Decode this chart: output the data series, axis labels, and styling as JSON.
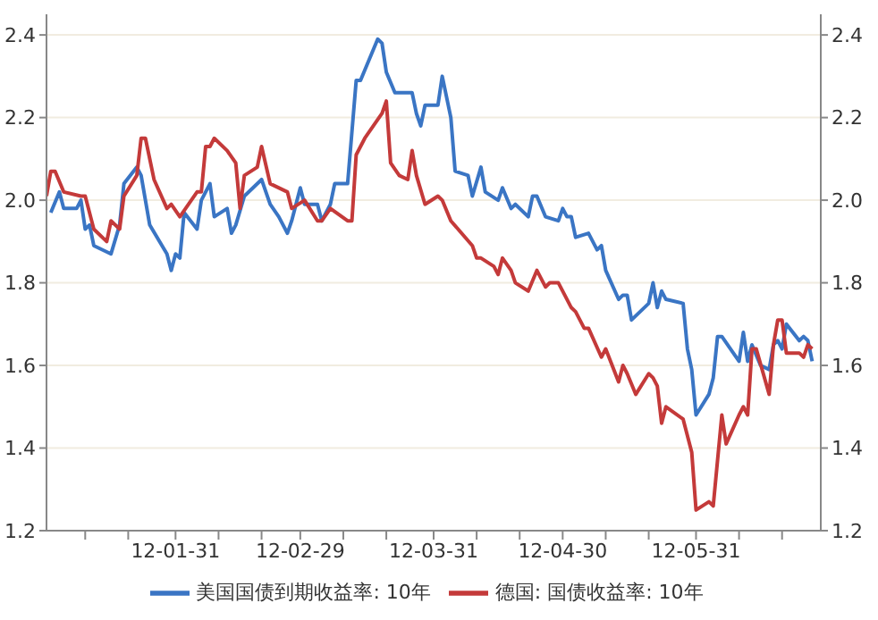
{
  "chart_data": {
    "type": "line",
    "xlim": [
      "--01-01",
      "--06-29"
    ],
    "xticks": [
      {
        "value": "--01-10",
        "label": null
      },
      {
        "value": "--01-20",
        "label": null
      },
      {
        "value": "--01-31",
        "label": "12-01-31"
      },
      {
        "value": "--02-10",
        "label": null
      },
      {
        "value": "--02-20",
        "label": null
      },
      {
        "value": "--02-29",
        "label": "12-02-29"
      },
      {
        "value": "--03-10",
        "label": null
      },
      {
        "value": "--03-20",
        "label": null
      },
      {
        "value": "--03-31",
        "label": "12-03-31"
      },
      {
        "value": "--04-10",
        "label": null
      },
      {
        "value": "--04-20",
        "label": null
      },
      {
        "value": "--04-30",
        "label": "12-04-30"
      },
      {
        "value": "--05-10",
        "label": null
      },
      {
        "value": "--05-20",
        "label": null
      },
      {
        "value": "--05-31",
        "label": "12-05-31"
      },
      {
        "value": "--06-10",
        "label": null
      },
      {
        "value": "--06-20",
        "label": null
      }
    ],
    "ylim": [
      1.2,
      2.45
    ],
    "yticks": [
      1.2,
      1.4,
      1.6,
      1.8,
      {
        "value": 2,
        "label": "2.0"
      },
      2.2,
      2.4
    ],
    "y2lim": [
      1.2,
      2.45
    ],
    "y2ticks": [
      1.2,
      1.4,
      1.6,
      1.8,
      {
        "value": 2,
        "label": "2.0"
      },
      2.2,
      2.4
    ],
    "grid": "y",
    "legend": "bottom",
    "marker": "none",
    "line_style": "solid",
    "series": [
      {
        "name": "美国国债到期收益率: 10年",
        "color": "#3a75c4",
        "x": [
          "--01-02",
          "--01-04",
          "--01-05",
          "--01-08",
          "--01-09",
          "--01-10",
          "--01-11",
          "--01-12",
          "--01-16",
          "--01-18",
          "--01-19",
          "--01-22",
          "--01-23",
          "--01-25",
          "--01-29",
          "--01-30",
          "--01-31",
          "--02-01",
          "--02-02",
          "--02-05",
          "--02-06",
          "--02-08",
          "--02-09",
          "--02-12",
          "--02-13",
          "--02-14",
          "--02-16",
          "--02-20",
          "--02-22",
          "--02-24",
          "--02-26",
          "--02-27",
          "--02-29",
          "--03-01",
          "--03-04",
          "--03-05",
          "--03-07",
          "--03-08",
          "--03-11",
          "--03-13",
          "--03-14",
          "--03-18",
          "--03-19",
          "--03-20",
          "--03-22",
          "--03-25",
          "--03-26",
          "--03-27",
          "--03-28",
          "--03-29",
          "--04-01",
          "--04-02",
          "--04-04",
          "--04-05",
          "--04-08",
          "--04-09",
          "--04-11",
          "--04-12",
          "--04-15",
          "--04-16",
          "--04-18",
          "--04-19",
          "--04-22",
          "--04-23",
          "--04-24",
          "--04-26",
          "--04-29",
          "--04-30",
          "--05-01",
          "--05-02",
          "--05-03",
          "--05-06",
          "--05-08",
          "--05-09",
          "--05-10",
          "--05-13",
          "--05-14",
          "--05-15",
          "--05-16",
          "--05-20",
          "--05-21",
          "--05-22",
          "--05-23",
          "--05-24",
          "--05-28",
          "--05-29",
          "--05-30",
          "--05-31",
          "--06-03",
          "--06-04",
          "--06-05",
          "--06-06",
          "--06-10",
          "--06-11",
          "--06-12",
          "--06-13",
          "--06-15",
          "--06-17",
          "--06-18",
          "--06-19",
          "--06-20",
          "--06-21",
          "--06-24",
          "--06-25",
          "--06-26",
          "--06-27"
        ],
        "values": [
          1.97,
          2.02,
          1.98,
          1.98,
          2.0,
          1.93,
          1.94,
          1.89,
          1.87,
          1.94,
          2.04,
          2.08,
          2.06,
          1.94,
          1.87,
          1.83,
          1.87,
          1.86,
          1.97,
          1.93,
          2.0,
          2.04,
          1.96,
          1.98,
          1.92,
          1.94,
          2.01,
          2.05,
          1.99,
          1.96,
          1.92,
          1.95,
          2.03,
          1.99,
          1.99,
          1.95,
          1.99,
          2.04,
          2.04,
          2.29,
          2.29,
          2.39,
          2.38,
          2.31,
          2.26,
          2.26,
          2.26,
          2.21,
          2.18,
          2.23,
          2.23,
          2.3,
          2.2,
          2.07,
          2.06,
          2.01,
          2.08,
          2.02,
          2.0,
          2.03,
          1.98,
          1.99,
          1.96,
          2.01,
          2.01,
          1.96,
          1.95,
          1.98,
          1.96,
          1.96,
          1.91,
          1.92,
          1.88,
          1.89,
          1.83,
          1.76,
          1.77,
          1.77,
          1.71,
          1.75,
          1.8,
          1.74,
          1.78,
          1.76,
          1.75,
          1.64,
          1.59,
          1.48,
          1.53,
          1.57,
          1.67,
          1.67,
          1.61,
          1.68,
          1.61,
          1.65,
          1.6,
          1.59,
          1.65,
          1.66,
          1.64,
          1.7,
          1.66,
          1.67,
          1.66,
          1.61
        ]
      },
      {
        "name": "德国: 国债收益率: 10年",
        "color": "#c43a3a",
        "x": [
          "--01-01",
          "--01-02",
          "--01-03",
          "--01-05",
          "--01-09",
          "--01-10",
          "--01-12",
          "--01-15",
          "--01-16",
          "--01-18",
          "--01-19",
          "--01-22",
          "--01-23",
          "--01-24",
          "--01-26",
          "--01-29",
          "--01-30",
          "--02-01",
          "--02-05",
          "--02-06",
          "--02-07",
          "--02-08",
          "--02-09",
          "--02-12",
          "--02-14",
          "--02-15",
          "--02-16",
          "--02-19",
          "--02-20",
          "--02-22",
          "--02-26",
          "--02-27",
          "--03-01",
          "--03-04",
          "--03-05",
          "--03-07",
          "--03-11",
          "--03-12",
          "--03-13",
          "--03-15",
          "--03-19",
          "--03-20",
          "--03-21",
          "--03-23",
          "--03-25",
          "--03-26",
          "--03-27",
          "--03-29",
          "--04-01",
          "--04-02",
          "--04-04",
          "--04-09",
          "--04-10",
          "--04-11",
          "--04-14",
          "--04-15",
          "--04-16",
          "--04-18",
          "--04-19",
          "--04-22",
          "--04-24",
          "--04-26",
          "--04-27",
          "--04-29",
          "--05-02",
          "--05-03",
          "--05-05",
          "--05-06",
          "--05-09",
          "--05-10",
          "--05-13",
          "--05-14",
          "--05-15",
          "--05-17",
          "--05-20",
          "--05-21",
          "--05-22",
          "--05-23",
          "--05-24",
          "--05-28",
          "--05-30",
          "--05-31",
          "--06-03",
          "--06-04",
          "--06-06",
          "--06-07",
          "--06-10",
          "--06-11",
          "--06-12",
          "--06-13",
          "--06-14",
          "--06-17",
          "--06-18",
          "--06-19",
          "--06-20",
          "--06-21",
          "--06-24",
          "--06-25",
          "--06-26",
          "--06-27"
        ],
        "values": [
          2.01,
          2.07,
          2.07,
          2.02,
          2.01,
          2.01,
          1.93,
          1.9,
          1.95,
          1.93,
          2.01,
          2.06,
          2.15,
          2.15,
          2.05,
          1.98,
          1.99,
          1.96,
          2.02,
          2.02,
          2.13,
          2.13,
          2.15,
          2.12,
          2.09,
          1.98,
          2.06,
          2.08,
          2.13,
          2.04,
          2.02,
          1.98,
          2.0,
          1.95,
          1.95,
          1.98,
          1.95,
          1.95,
          2.11,
          2.15,
          2.21,
          2.24,
          2.09,
          2.06,
          2.05,
          2.12,
          2.06,
          1.99,
          2.01,
          2.0,
          1.95,
          1.89,
          1.86,
          1.86,
          1.84,
          1.82,
          1.86,
          1.83,
          1.8,
          1.78,
          1.83,
          1.79,
          1.8,
          1.8,
          1.74,
          1.73,
          1.69,
          1.69,
          1.62,
          1.64,
          1.56,
          1.6,
          1.58,
          1.53,
          1.58,
          1.57,
          1.55,
          1.46,
          1.5,
          1.47,
          1.39,
          1.25,
          1.27,
          1.26,
          1.48,
          1.41,
          1.48,
          1.5,
          1.48,
          1.64,
          1.64,
          1.53,
          1.65,
          1.71,
          1.71,
          1.63,
          1.63,
          1.62,
          1.65,
          1.64
        ]
      }
    ]
  }
}
